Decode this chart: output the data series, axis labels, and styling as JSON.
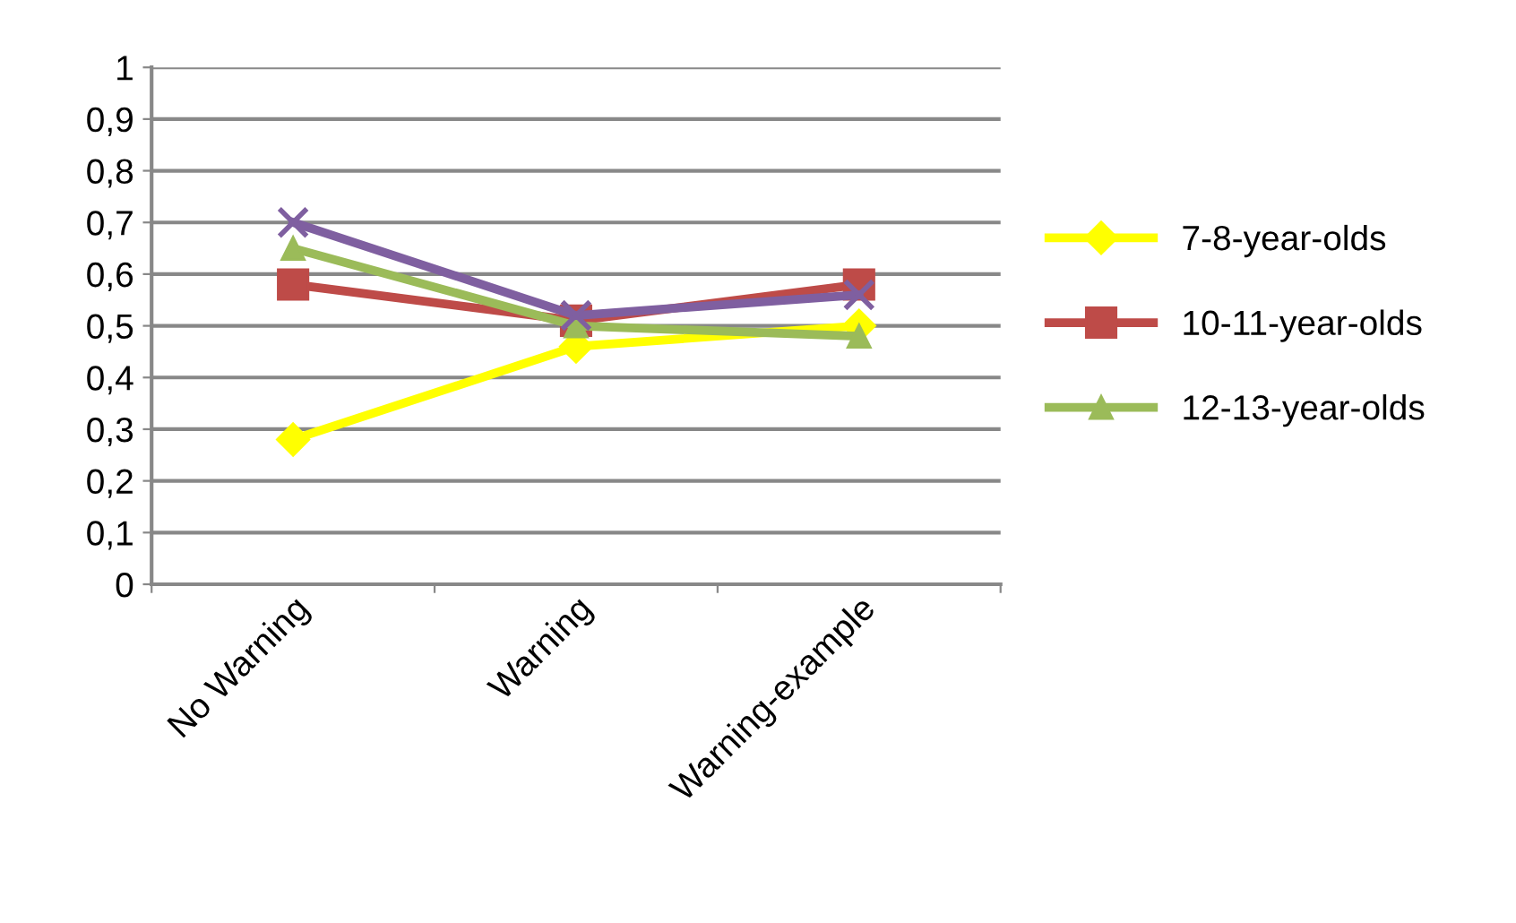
{
  "chart_data": {
    "type": "line",
    "categories": [
      "No Warning",
      "Warning",
      "Warning-example"
    ],
    "series": [
      {
        "name": "7-8-year-olds",
        "color": "#ffff00",
        "marker": "diamond",
        "values": [
          0.28,
          0.46,
          0.5
        ]
      },
      {
        "name": "10-11-year-olds",
        "color": "#be4b48",
        "marker": "square",
        "values": [
          0.58,
          0.51,
          0.58
        ]
      },
      {
        "name": "12-13-year-olds",
        "color": "#9bbb59",
        "marker": "triangle",
        "values": [
          0.65,
          0.5,
          0.48
        ]
      },
      {
        "color": "#7f5fa0",
        "marker": "cross",
        "values": [
          0.7,
          0.52,
          0.56
        ]
      }
    ],
    "ylim": [
      0,
      1
    ],
    "yticks": [
      0,
      {
        "value": 0.1,
        "label": "0,1"
      },
      {
        "value": 0.2,
        "label": "0,2"
      },
      {
        "value": 0.3,
        "label": "0,3"
      },
      {
        "value": 0.4,
        "label": "0,4"
      },
      {
        "value": 0.5,
        "label": "0,5"
      },
      {
        "value": 0.6,
        "label": "0,6"
      },
      {
        "value": 0.7,
        "label": "0,7"
      },
      {
        "value": 0.8,
        "label": "0,8"
      },
      {
        "value": 0.9,
        "label": "0,9"
      },
      1
    ],
    "grid": "y",
    "legend": "right",
    "line_style": "solid"
  }
}
